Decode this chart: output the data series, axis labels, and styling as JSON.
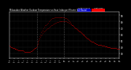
{
  "title": "Milwaukee Weather Outdoor Temperature vs Heat Index per Minute (24 Hours)",
  "legend_labels": [
    "Outdoor Temp",
    "Heat Index"
  ],
  "legend_colors": [
    "#0000cc",
    "#ff0000"
  ],
  "background_color": "#000000",
  "plot_bg_color": "#000000",
  "dot_color": "#ff0000",
  "dot_color2": "#ff0000",
  "vline_color": "#888888",
  "vline_positions": [
    360,
    720
  ],
  "ylabel_values": [
    30,
    40,
    50,
    60,
    70,
    80,
    90
  ],
  "ylim": [
    22,
    95
  ],
  "xlim": [
    0,
    1440
  ],
  "xtick_every": 60,
  "temp_data": [
    [
      0,
      42
    ],
    [
      10,
      41
    ],
    [
      20,
      40
    ],
    [
      30,
      40
    ],
    [
      40,
      39
    ],
    [
      50,
      38
    ],
    [
      60,
      38
    ],
    [
      70,
      37
    ],
    [
      80,
      37
    ],
    [
      90,
      37
    ],
    [
      100,
      36
    ],
    [
      110,
      36
    ],
    [
      120,
      35
    ],
    [
      130,
      35
    ],
    [
      140,
      35
    ],
    [
      150,
      35
    ],
    [
      160,
      35
    ],
    [
      170,
      35
    ],
    [
      180,
      35
    ],
    [
      190,
      34
    ],
    [
      200,
      33
    ],
    [
      210,
      33
    ],
    [
      220,
      33
    ],
    [
      230,
      33
    ],
    [
      240,
      33
    ],
    [
      250,
      33
    ],
    [
      260,
      32
    ],
    [
      270,
      33
    ],
    [
      280,
      34
    ],
    [
      290,
      34
    ],
    [
      300,
      35
    ],
    [
      310,
      36
    ],
    [
      320,
      37
    ],
    [
      330,
      38
    ],
    [
      340,
      39
    ],
    [
      350,
      40
    ],
    [
      360,
      42
    ],
    [
      370,
      45
    ],
    [
      380,
      48
    ],
    [
      390,
      51
    ],
    [
      400,
      54
    ],
    [
      410,
      56
    ],
    [
      420,
      58
    ],
    [
      430,
      60
    ],
    [
      440,
      62
    ],
    [
      450,
      64
    ],
    [
      460,
      65
    ],
    [
      470,
      66
    ],
    [
      480,
      67
    ],
    [
      490,
      68
    ],
    [
      500,
      69
    ],
    [
      510,
      70
    ],
    [
      520,
      71
    ],
    [
      530,
      72
    ],
    [
      540,
      73
    ],
    [
      550,
      74
    ],
    [
      560,
      75
    ],
    [
      570,
      76
    ],
    [
      580,
      77
    ],
    [
      590,
      77
    ],
    [
      600,
      78
    ],
    [
      610,
      78
    ],
    [
      620,
      79
    ],
    [
      630,
      79
    ],
    [
      640,
      79
    ],
    [
      650,
      80
    ],
    [
      660,
      80
    ],
    [
      670,
      80
    ],
    [
      680,
      81
    ],
    [
      690,
      81
    ],
    [
      700,
      81
    ],
    [
      710,
      81
    ],
    [
      720,
      81
    ],
    [
      730,
      80
    ],
    [
      740,
      80
    ],
    [
      750,
      80
    ],
    [
      760,
      79
    ],
    [
      770,
      79
    ],
    [
      780,
      78
    ],
    [
      790,
      78
    ],
    [
      800,
      77
    ],
    [
      810,
      76
    ],
    [
      820,
      75
    ],
    [
      830,
      74
    ],
    [
      840,
      73
    ],
    [
      850,
      72
    ],
    [
      860,
      71
    ],
    [
      870,
      70
    ],
    [
      880,
      69
    ],
    [
      890,
      68
    ],
    [
      900,
      67
    ],
    [
      910,
      66
    ],
    [
      920,
      65
    ],
    [
      930,
      64
    ],
    [
      940,
      63
    ],
    [
      950,
      62
    ],
    [
      960,
      61
    ],
    [
      970,
      60
    ],
    [
      980,
      59
    ],
    [
      990,
      58
    ],
    [
      1000,
      57
    ],
    [
      1010,
      56
    ],
    [
      1020,
      55
    ],
    [
      1030,
      54
    ],
    [
      1040,
      53
    ],
    [
      1050,
      52
    ],
    [
      1060,
      51
    ],
    [
      1070,
      50
    ],
    [
      1080,
      49
    ],
    [
      1090,
      48
    ],
    [
      1100,
      48
    ],
    [
      1110,
      47
    ],
    [
      1120,
      46
    ],
    [
      1130,
      46
    ],
    [
      1140,
      45
    ],
    [
      1150,
      45
    ],
    [
      1160,
      44
    ],
    [
      1170,
      44
    ],
    [
      1180,
      43
    ],
    [
      1190,
      43
    ],
    [
      1200,
      43
    ],
    [
      1210,
      42
    ],
    [
      1220,
      42
    ],
    [
      1230,
      42
    ],
    [
      1240,
      42
    ],
    [
      1250,
      41
    ],
    [
      1260,
      41
    ],
    [
      1270,
      41
    ],
    [
      1280,
      41
    ],
    [
      1290,
      40
    ],
    [
      1300,
      40
    ],
    [
      1310,
      40
    ],
    [
      1320,
      40
    ],
    [
      1330,
      39
    ],
    [
      1340,
      39
    ],
    [
      1350,
      39
    ],
    [
      1360,
      39
    ],
    [
      1370,
      38
    ],
    [
      1380,
      38
    ],
    [
      1390,
      38
    ],
    [
      1400,
      38
    ],
    [
      1410,
      37
    ],
    [
      1420,
      37
    ],
    [
      1430,
      37
    ],
    [
      1440,
      37
    ]
  ],
  "heat_data": [
    [
      0,
      42
    ],
    [
      10,
      41
    ],
    [
      20,
      40
    ],
    [
      30,
      40
    ],
    [
      40,
      39
    ],
    [
      50,
      38
    ],
    [
      60,
      38
    ],
    [
      70,
      37
    ],
    [
      80,
      37
    ],
    [
      90,
      37
    ],
    [
      100,
      36
    ],
    [
      110,
      36
    ],
    [
      120,
      35
    ],
    [
      130,
      35
    ],
    [
      140,
      35
    ],
    [
      150,
      35
    ],
    [
      160,
      35
    ],
    [
      170,
      35
    ],
    [
      180,
      35
    ],
    [
      190,
      34
    ],
    [
      200,
      33
    ],
    [
      210,
      33
    ],
    [
      220,
      33
    ],
    [
      230,
      33
    ],
    [
      240,
      33
    ],
    [
      250,
      33
    ],
    [
      260,
      32
    ],
    [
      270,
      33
    ],
    [
      280,
      34
    ],
    [
      290,
      34
    ],
    [
      300,
      35
    ],
    [
      310,
      36
    ],
    [
      320,
      37
    ],
    [
      330,
      38
    ],
    [
      340,
      39
    ],
    [
      350,
      40
    ],
    [
      360,
      43
    ],
    [
      370,
      46
    ],
    [
      380,
      50
    ],
    [
      390,
      54
    ],
    [
      400,
      57
    ],
    [
      410,
      60
    ],
    [
      420,
      63
    ],
    [
      430,
      65
    ],
    [
      440,
      67
    ],
    [
      450,
      70
    ],
    [
      460,
      72
    ],
    [
      470,
      74
    ],
    [
      480,
      75
    ],
    [
      490,
      76
    ],
    [
      500,
      77
    ],
    [
      510,
      78
    ],
    [
      520,
      80
    ],
    [
      530,
      82
    ],
    [
      540,
      83
    ],
    [
      550,
      84
    ],
    [
      560,
      85
    ],
    [
      570,
      86
    ],
    [
      580,
      86
    ],
    [
      590,
      87
    ],
    [
      600,
      87
    ],
    [
      610,
      87
    ],
    [
      620,
      87
    ],
    [
      630,
      87
    ],
    [
      640,
      87
    ],
    [
      650,
      87
    ],
    [
      660,
      87
    ],
    [
      670,
      87
    ],
    [
      680,
      87
    ],
    [
      690,
      87
    ],
    [
      700,
      87
    ],
    [
      710,
      87
    ],
    [
      720,
      87
    ],
    [
      730,
      86
    ],
    [
      740,
      86
    ],
    [
      750,
      85
    ],
    [
      760,
      84
    ],
    [
      770,
      83
    ],
    [
      780,
      82
    ],
    [
      790,
      80
    ],
    [
      800,
      79
    ],
    [
      810,
      77
    ],
    [
      820,
      75
    ],
    [
      830,
      74
    ],
    [
      840,
      73
    ],
    [
      850,
      71
    ],
    [
      860,
      70
    ],
    [
      870,
      69
    ],
    [
      880,
      68
    ],
    [
      890,
      67
    ],
    [
      900,
      66
    ],
    [
      910,
      65
    ],
    [
      920,
      64
    ],
    [
      930,
      63
    ],
    [
      940,
      62
    ],
    [
      950,
      61
    ],
    [
      960,
      60
    ],
    [
      970,
      59
    ],
    [
      980,
      58
    ],
    [
      990,
      57
    ],
    [
      1000,
      56
    ],
    [
      1010,
      55
    ],
    [
      1020,
      54
    ],
    [
      1030,
      53
    ],
    [
      1040,
      52
    ],
    [
      1050,
      51
    ],
    [
      1060,
      50
    ],
    [
      1070,
      50
    ],
    [
      1080,
      49
    ],
    [
      1090,
      48
    ],
    [
      1100,
      48
    ],
    [
      1110,
      47
    ],
    [
      1120,
      46
    ],
    [
      1130,
      46
    ],
    [
      1140,
      45
    ],
    [
      1150,
      45
    ],
    [
      1160,
      44
    ],
    [
      1170,
      44
    ],
    [
      1180,
      43
    ],
    [
      1190,
      43
    ],
    [
      1200,
      43
    ],
    [
      1210,
      42
    ],
    [
      1220,
      42
    ],
    [
      1230,
      42
    ],
    [
      1240,
      42
    ],
    [
      1250,
      41
    ],
    [
      1260,
      41
    ],
    [
      1270,
      41
    ],
    [
      1280,
      41
    ],
    [
      1290,
      40
    ],
    [
      1300,
      40
    ],
    [
      1310,
      40
    ],
    [
      1320,
      40
    ],
    [
      1330,
      39
    ],
    [
      1340,
      39
    ],
    [
      1350,
      39
    ],
    [
      1360,
      39
    ],
    [
      1370,
      38
    ],
    [
      1380,
      38
    ],
    [
      1390,
      38
    ],
    [
      1400,
      38
    ],
    [
      1410,
      37
    ],
    [
      1420,
      37
    ],
    [
      1430,
      37
    ],
    [
      1440,
      37
    ]
  ],
  "title_color": "#ffffff",
  "tick_color": "#ffffff",
  "spine_color": "#ffffff",
  "grid_color": "#444444"
}
